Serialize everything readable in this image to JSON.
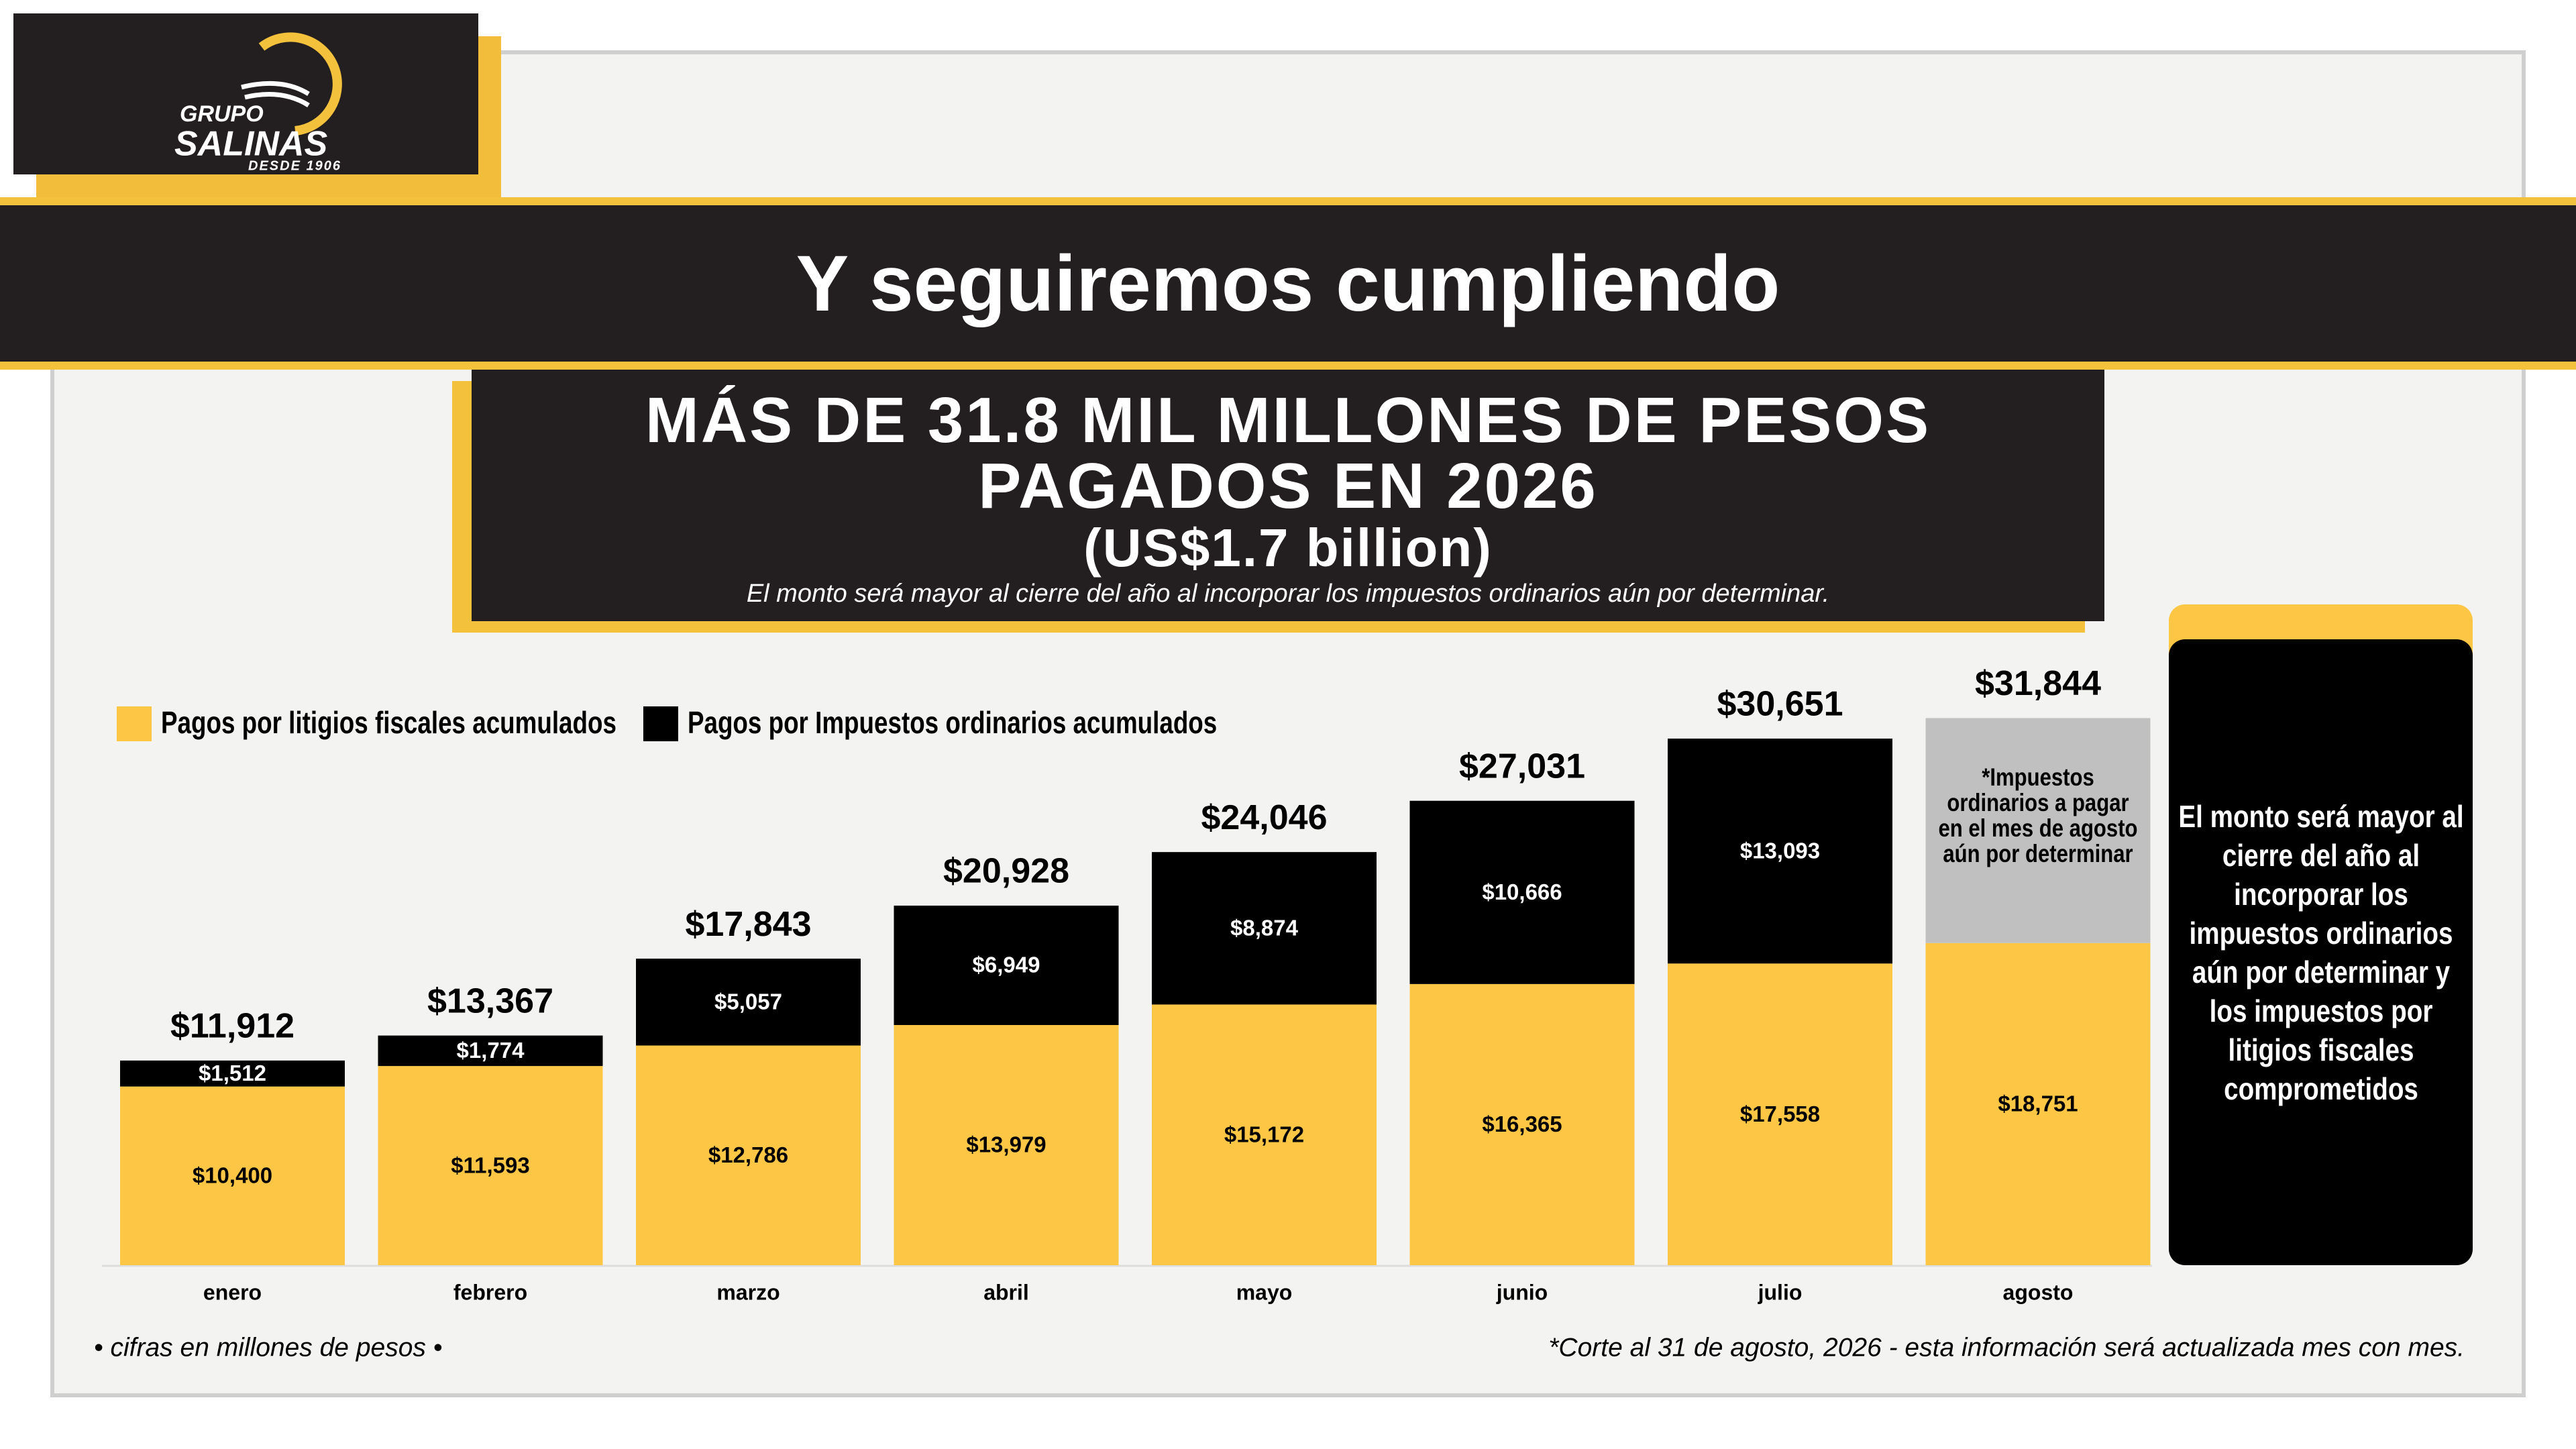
{
  "logo": {
    "top": "GRUPO",
    "name": "SALINAS",
    "tagline": "DESDE 1906"
  },
  "header": {
    "title": "Y seguiremos cumpliendo"
  },
  "headline": {
    "lines": [
      "MÁS DE 31.8 MIL MILLONES DE PESOS",
      "PAGADOS EN 2026"
    ],
    "subline": "(US$1.7 billion)",
    "note": "El monto será mayor al cierre del año al incorporar los impuestos ordinarios aún por determinar."
  },
  "chart_data": {
    "type": "stacked-bar",
    "legend": "top-left",
    "categories": [
      "enero",
      "febrero",
      "marzo",
      "abril",
      "mayo",
      "junio",
      "julio",
      "agosto"
    ],
    "series": [
      {
        "name": "Pagos por litigios fiscales acumulados",
        "color": "#fdc745",
        "values": [
          10400,
          11593,
          12786,
          13979,
          15172,
          16365,
          17558,
          18751
        ],
        "value_labels": [
          "$10,400",
          "$11,593",
          "$12,786",
          "$13,979",
          "$15,172",
          "$16,365",
          "$17,558",
          "$18,751"
        ]
      },
      {
        "name": "Pagos por Impuestos ordinarios acumulados",
        "color": "#000000",
        "values": [
          1512,
          1774,
          5057,
          6949,
          8874,
          10666,
          13093,
          null
        ],
        "value_labels": [
          "$1,512",
          "$1,774",
          "$5,057",
          "$6,949",
          "$8,874",
          "$10,666",
          "$13,093",
          null
        ]
      },
      {
        "color": "#c0c0c0",
        "values": [
          null,
          null,
          null,
          null,
          null,
          null,
          null,
          13093
        ],
        "annotation": "*Impuestos ordinarios a pagar en el mes de agosto aún por determinar"
      }
    ],
    "totals": [
      11912,
      13367,
      17843,
      20928,
      24046,
      27031,
      30651,
      31844
    ],
    "total_labels": [
      "$11,912",
      "$13,367",
      "$17,843",
      "$20,928",
      "$24,046",
      "$27,031",
      "$30,651",
      "$31,844"
    ],
    "ylim": [
      0,
      36000
    ]
  },
  "side_note": "El monto será mayor al cierre del año al incorporar los impuestos ordinarios aún por determinar y los impuestos por litigios fiscales comprometidos",
  "footnotes": {
    "left": "• cifras en millones de pesos •",
    "right": "*Corte al 31 de agosto, 2026 - esta información será actualizada mes con mes."
  }
}
